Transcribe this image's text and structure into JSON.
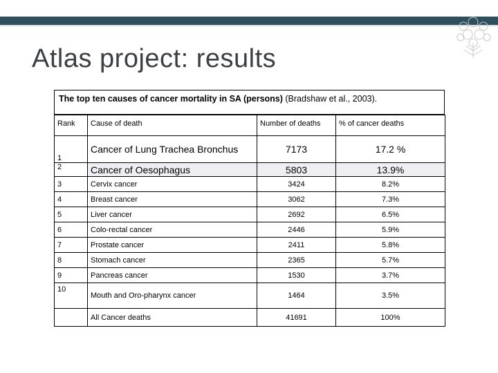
{
  "slide": {
    "title": "Atlas project: results"
  },
  "caption": {
    "bold": "The top ten causes of cancer mortality in SA (persons)",
    "normal": " (Bradshaw et al., 2003)."
  },
  "table": {
    "headers": {
      "rank": "Rank",
      "cause": "Cause of death",
      "number": "Number of deaths",
      "percent": "% of cancer deaths"
    },
    "rows": [
      {
        "rank": "1",
        "cause": "Cancer of Lung Trachea Bronchus",
        "number": "7173",
        "percent": "17.2 %"
      },
      {
        "rank": "2",
        "cause": "Cancer of Oesophagus",
        "number": "5803",
        "percent": "13.9%"
      },
      {
        "rank": "3",
        "cause": "Cervix cancer",
        "number": "3424",
        "percent": "8.2%"
      },
      {
        "rank": "4",
        "cause": "Breast cancer",
        "number": "3062",
        "percent": "7.3%"
      },
      {
        "rank": "5",
        "cause": "Liver cancer",
        "number": "2692",
        "percent": "6.5%"
      },
      {
        "rank": "6",
        "cause": "Colo-rectal cancer",
        "number": "2446",
        "percent": "5.9%"
      },
      {
        "rank": "7",
        "cause": "Prostate cancer",
        "number": "2411",
        "percent": "5.8%"
      },
      {
        "rank": "8",
        "cause": "Stomach cancer",
        "number": "2365",
        "percent": "5.7%"
      },
      {
        "rank": "9",
        "cause": "Pancreas cancer",
        "number": "1530",
        "percent": "3.7%"
      },
      {
        "rank": "10",
        "cause": "Mouth and Oro-pharynx cancer",
        "number": "1464",
        "percent": "3.5%"
      }
    ],
    "total": {
      "rank": "",
      "cause": "All Cancer deaths",
      "number": "41691",
      "percent": "100%"
    }
  },
  "colors": {
    "accent_bar": "#2f4f5c",
    "title_text": "#3b3f44",
    "highlight_cell": "#efeff3"
  }
}
